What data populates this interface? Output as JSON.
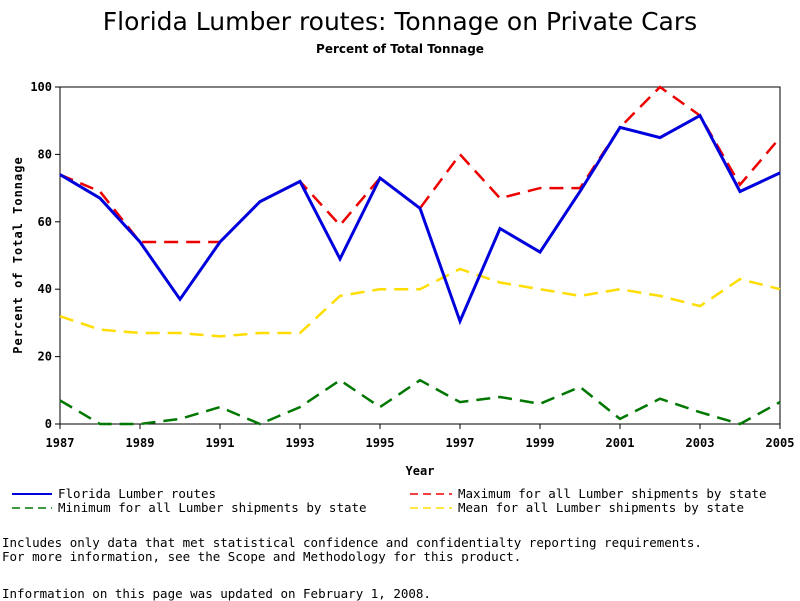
{
  "chart_data": {
    "type": "line",
    "title": "Florida Lumber routes: Tonnage on Private Cars",
    "subtitle": "Percent of Total Tonnage",
    "xlabel": "Year",
    "ylabel": "Percent of Total Tonnage",
    "xlim": [
      1987,
      2005
    ],
    "ylim": [
      0,
      100
    ],
    "x_ticks": [
      1987,
      1989,
      1991,
      1993,
      1995,
      1997,
      1999,
      2001,
      2003,
      2005
    ],
    "y_ticks": [
      0,
      20,
      40,
      60,
      80,
      100
    ],
    "x": [
      1987,
      1988,
      1989,
      1990,
      1991,
      1992,
      1993,
      1994,
      1995,
      1996,
      1997,
      1998,
      1999,
      2000,
      2001,
      2002,
      2003,
      2004,
      2005
    ],
    "series": [
      {
        "name": "Florida Lumber routes",
        "color": "#0000dd",
        "dash": "solid",
        "values": [
          74,
          67,
          54,
          37,
          54,
          66,
          72,
          49,
          73,
          64,
          30.5,
          58,
          51,
          69,
          88,
          85,
          91.5,
          69,
          74.5
        ]
      },
      {
        "name": "Maximum for all Lumber shipments by state",
        "color": "#ee0000",
        "dash": "dashed",
        "values": [
          74,
          69,
          54,
          54,
          54,
          66,
          72,
          59,
          73,
          64,
          80,
          67,
          70,
          70,
          88,
          100,
          91.5,
          71,
          85
        ]
      },
      {
        "name": "Minimum for all Lumber shipments by state",
        "color": "#007700",
        "dash": "dashed",
        "values": [
          7,
          0,
          0,
          1.5,
          5,
          0,
          5,
          13,
          5,
          13,
          6.5,
          8,
          6,
          11,
          1.5,
          7.5,
          3.5,
          0,
          6.5
        ]
      },
      {
        "name": "Mean for all Lumber shipments by state",
        "color": "#ffdd00",
        "dash": "dashed",
        "values": [
          32,
          28,
          27,
          27,
          26,
          27,
          27,
          38,
          40,
          40,
          46,
          42,
          40,
          38,
          40,
          38,
          35,
          43,
          40
        ]
      }
    ]
  },
  "notes": {
    "line1": "Includes only data that met statistical confidence and confidentialty reporting requirements.",
    "line2": "For more information, see the Scope and Methodology for this product.",
    "line3": "Information on this page was updated on February 1, 2008."
  }
}
